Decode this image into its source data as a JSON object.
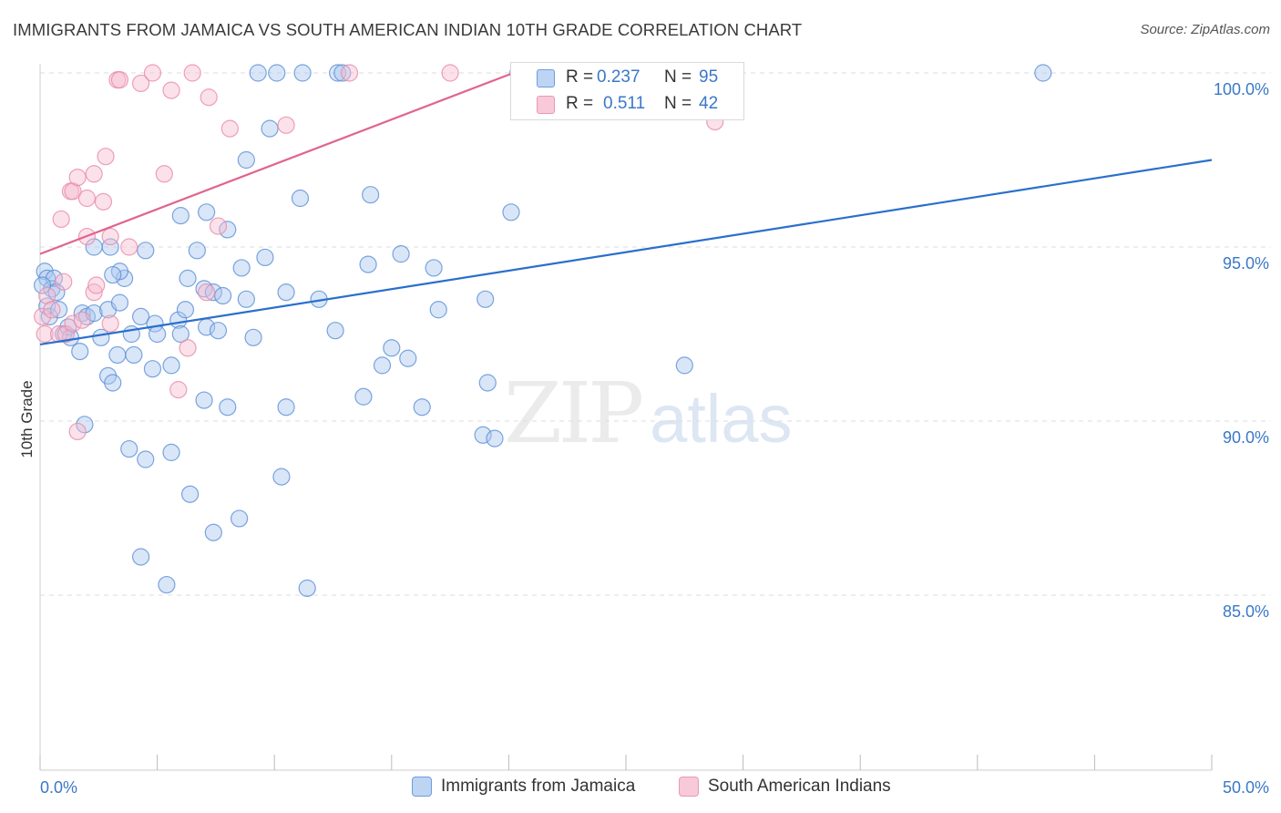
{
  "title": "IMMIGRANTS FROM JAMAICA VS SOUTH AMERICAN INDIAN 10TH GRADE CORRELATION CHART",
  "source": "Source: ZipAtlas.com",
  "watermark": {
    "zip": "ZIP",
    "atlas": "atlas"
  },
  "colors": {
    "blue_fill": "#aac8ef",
    "blue_stroke": "#5b8fd6",
    "blue_line": "#2a6fcc",
    "pink_fill": "#f6bcd0",
    "pink_stroke": "#e98aa8",
    "pink_line": "#e0648f",
    "grid": "#dddddd",
    "axis_text": "#3a78c8"
  },
  "legend": {
    "series": [
      {
        "r_label": "R =",
        "r_value": "0.237",
        "n_label": "N =",
        "n_value": "95"
      },
      {
        "r_label": "R =",
        "r_value": "0.511",
        "n_label": "N =",
        "n_value": "42"
      }
    ]
  },
  "bottom_legend": [
    "Immigrants from Jamaica",
    "South American Indians"
  ],
  "chart_data": {
    "type": "scatter",
    "title": "IMMIGRANTS FROM JAMAICA VS SOUTH AMERICAN INDIAN 10TH GRADE CORRELATION CHART",
    "xlabel": "",
    "ylabel": "10th Grade",
    "xlim": [
      0,
      50
    ],
    "ylim": [
      80.5,
      100.8
    ],
    "x_tick_labels": [
      "0.0%",
      "50.0%"
    ],
    "y_ticks": [
      85,
      90,
      95,
      100
    ],
    "y_tick_labels": [
      "85.0%",
      "90.0%",
      "95.0%",
      "100.0%"
    ],
    "series": [
      {
        "name": "Immigrants from Jamaica",
        "R": 0.237,
        "N": 95,
        "trend": {
          "x": [
            0,
            50
          ],
          "y": [
            92.2,
            97.5
          ]
        },
        "points": [
          [
            0.2,
            94.3
          ],
          [
            0.3,
            94.1
          ],
          [
            0.5,
            93.8
          ],
          [
            0.6,
            94.1
          ],
          [
            0.7,
            93.7
          ],
          [
            0.3,
            93.3
          ],
          [
            0.4,
            93.0
          ],
          [
            0.8,
            93.2
          ],
          [
            1.0,
            92.5
          ],
          [
            1.2,
            92.7
          ],
          [
            1.3,
            92.4
          ],
          [
            1.8,
            93.1
          ],
          [
            2.0,
            93.0
          ],
          [
            2.3,
            93.1
          ],
          [
            1.7,
            92.0
          ],
          [
            2.9,
            93.2
          ],
          [
            2.6,
            92.4
          ],
          [
            3.4,
            93.4
          ],
          [
            3.6,
            94.1
          ],
          [
            3.4,
            94.3
          ],
          [
            3.1,
            94.2
          ],
          [
            3.9,
            92.5
          ],
          [
            3.3,
            91.9
          ],
          [
            4.3,
            93.0
          ],
          [
            4.5,
            94.9
          ],
          [
            3.0,
            95.0
          ],
          [
            2.3,
            95.0
          ],
          [
            4.0,
            91.9
          ],
          [
            4.9,
            92.8
          ],
          [
            5.0,
            92.5
          ],
          [
            5.9,
            92.9
          ],
          [
            6.0,
            92.5
          ],
          [
            6.2,
            93.2
          ],
          [
            6.3,
            94.1
          ],
          [
            7.0,
            93.8
          ],
          [
            7.1,
            92.7
          ],
          [
            7.4,
            93.7
          ],
          [
            7.6,
            92.6
          ],
          [
            7.8,
            93.6
          ],
          [
            8.8,
            93.5
          ],
          [
            6.7,
            94.9
          ],
          [
            7.1,
            96.0
          ],
          [
            6.0,
            95.9
          ],
          [
            8.0,
            95.5
          ],
          [
            8.6,
            94.4
          ],
          [
            9.6,
            94.7
          ],
          [
            10.5,
            93.7
          ],
          [
            11.9,
            93.5
          ],
          [
            12.6,
            92.6
          ],
          [
            14.0,
            94.5
          ],
          [
            15.4,
            94.8
          ],
          [
            16.8,
            94.4
          ],
          [
            17.0,
            93.2
          ],
          [
            19.0,
            93.5
          ],
          [
            15.0,
            92.1
          ],
          [
            15.7,
            91.8
          ],
          [
            14.6,
            91.6
          ],
          [
            16.3,
            90.4
          ],
          [
            13.8,
            90.7
          ],
          [
            9.1,
            92.4
          ],
          [
            2.9,
            91.3
          ],
          [
            3.1,
            91.1
          ],
          [
            4.8,
            91.5
          ],
          [
            5.6,
            91.6
          ],
          [
            7.0,
            90.6
          ],
          [
            8.0,
            90.4
          ],
          [
            10.5,
            90.4
          ],
          [
            1.9,
            89.9
          ],
          [
            3.8,
            89.2
          ],
          [
            4.5,
            88.9
          ],
          [
            5.6,
            89.1
          ],
          [
            18.9,
            89.6
          ],
          [
            19.4,
            89.5
          ],
          [
            10.3,
            88.4
          ],
          [
            6.4,
            87.9
          ],
          [
            8.5,
            87.2
          ],
          [
            7.4,
            86.8
          ],
          [
            4.3,
            86.1
          ],
          [
            5.4,
            85.3
          ],
          [
            11.4,
            85.2
          ],
          [
            9.8,
            98.4
          ],
          [
            8.8,
            97.5
          ],
          [
            11.1,
            96.4
          ],
          [
            14.1,
            96.5
          ],
          [
            20.1,
            96.0
          ],
          [
            27.5,
            91.6
          ],
          [
            9.3,
            100.0
          ],
          [
            10.1,
            100.0
          ],
          [
            11.2,
            100.0
          ],
          [
            12.7,
            100.0
          ],
          [
            12.9,
            100.0
          ],
          [
            20.4,
            100.0
          ],
          [
            42.8,
            100.0
          ],
          [
            19.1,
            91.1
          ],
          [
            0.1,
            93.9
          ]
        ]
      },
      {
        "name": "South American Indians",
        "R": 0.511,
        "N": 42,
        "trend": {
          "x": [
            0,
            20.2
          ],
          "y": [
            94.8,
            100.0
          ]
        },
        "points": [
          [
            0.1,
            93.0
          ],
          [
            0.2,
            92.5
          ],
          [
            0.3,
            93.6
          ],
          [
            0.5,
            93.2
          ],
          [
            0.8,
            92.5
          ],
          [
            1.1,
            92.5
          ],
          [
            1.4,
            92.8
          ],
          [
            1.8,
            92.9
          ],
          [
            2.3,
            93.7
          ],
          [
            3.0,
            92.8
          ],
          [
            1.0,
            94.0
          ],
          [
            2.4,
            93.9
          ],
          [
            0.9,
            95.8
          ],
          [
            2.0,
            95.3
          ],
          [
            3.0,
            95.3
          ],
          [
            3.8,
            95.0
          ],
          [
            1.3,
            96.6
          ],
          [
            1.4,
            96.6
          ],
          [
            2.0,
            96.4
          ],
          [
            2.7,
            96.3
          ],
          [
            1.6,
            97.0
          ],
          [
            2.3,
            97.1
          ],
          [
            2.8,
            97.6
          ],
          [
            5.3,
            97.1
          ],
          [
            5.6,
            99.5
          ],
          [
            4.3,
            99.7
          ],
          [
            3.3,
            99.8
          ],
          [
            3.4,
            99.8
          ],
          [
            4.8,
            100.0
          ],
          [
            6.5,
            100.0
          ],
          [
            7.2,
            99.3
          ],
          [
            8.1,
            98.4
          ],
          [
            10.5,
            98.5
          ],
          [
            7.6,
            95.6
          ],
          [
            7.1,
            93.7
          ],
          [
            6.3,
            92.1
          ],
          [
            5.9,
            90.9
          ],
          [
            1.6,
            89.7
          ],
          [
            13.2,
            100.0
          ],
          [
            17.5,
            100.0
          ],
          [
            21.0,
            100.0
          ],
          [
            28.8,
            98.6
          ]
        ]
      }
    ]
  }
}
